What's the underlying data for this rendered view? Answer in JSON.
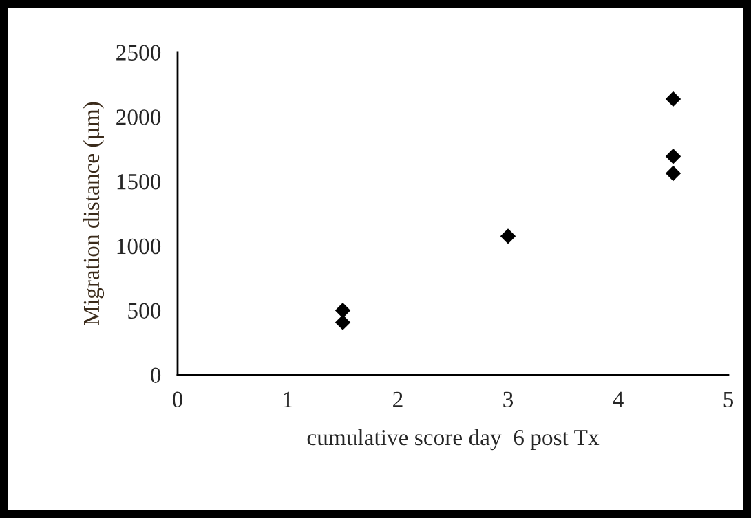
{
  "chart_data": {
    "type": "scatter",
    "xlabel": "cumulative score day  6 post Tx",
    "ylabel": "Migration distance (µm)",
    "series": [
      {
        "color": "#000000",
        "x": [
          1.5,
          1.5,
          3,
          4.5,
          4.5,
          4.5
        ],
        "values": [
          500,
          407,
          1075,
          2138,
          1694,
          1562
        ]
      }
    ],
    "xlim": [
      0,
      5
    ],
    "xticks": [
      0,
      1,
      2,
      3,
      4,
      5
    ],
    "ylim": [
      0,
      2500
    ],
    "yticks": [
      0,
      500,
      1000,
      1500,
      2000,
      2500
    ],
    "grid": false,
    "legend": false,
    "marker": "diamond"
  }
}
